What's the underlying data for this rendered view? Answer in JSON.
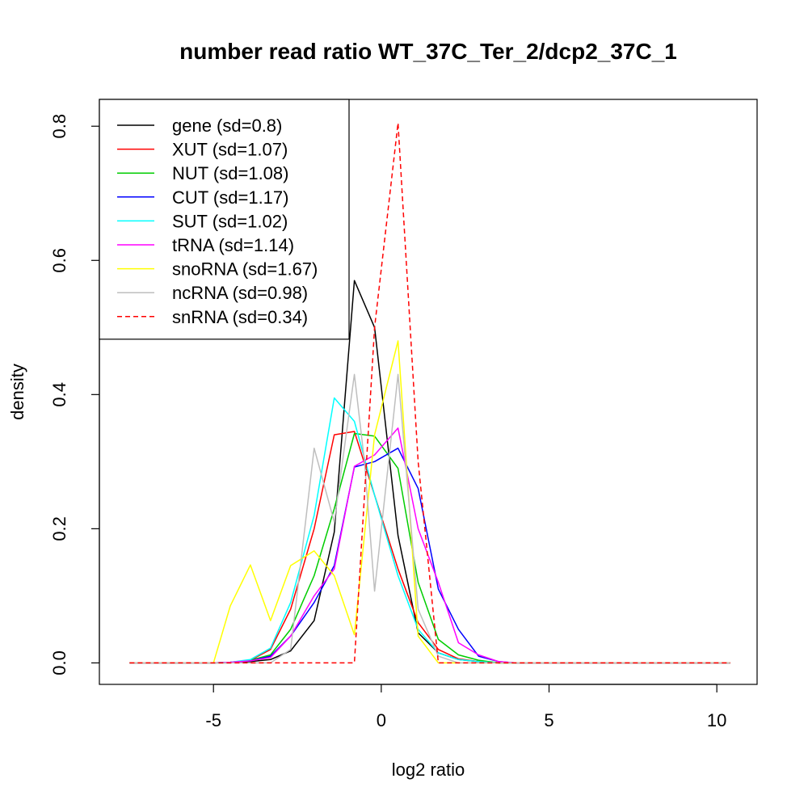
{
  "chart_data": {
    "type": "line",
    "title": "number read ratio WT_37C_Ter_2/dcp2_37C_1",
    "xlabel": "log2 ratio",
    "ylabel": "density",
    "xlim": [
      -8.4,
      11.2
    ],
    "ylim": [
      -0.032,
      0.84
    ],
    "xticks": [
      -5,
      0,
      5,
      10
    ],
    "yticks": [
      0.0,
      0.2,
      0.4,
      0.6,
      0.8
    ],
    "xtick_labels": [
      "-5",
      "0",
      "5",
      "10"
    ],
    "ytick_labels": [
      "0.0",
      "0.2",
      "0.4",
      "0.6",
      "0.8"
    ],
    "legend_position": "top-left",
    "series": [
      {
        "name": "gene (sd=0.8)",
        "color": "#000000",
        "dash": false,
        "x": [
          -7.5,
          -5.0,
          -4.5,
          -3.9,
          -3.3,
          -2.7,
          -2.0,
          -1.4,
          -0.8,
          -0.2,
          0.5,
          1.1,
          1.7,
          2.3,
          2.9,
          3.5,
          4.0,
          5.0,
          10.4
        ],
        "y": [
          0,
          0,
          0,
          0.002,
          0.005,
          0.018,
          0.063,
          0.195,
          0.57,
          0.5,
          0.19,
          0.045,
          0.015,
          0.005,
          0.002,
          0,
          0,
          0,
          0
        ]
      },
      {
        "name": "XUT (sd=1.07)",
        "color": "#ff0000",
        "dash": false,
        "x": [
          -7.5,
          -5.0,
          -4.5,
          -3.9,
          -3.3,
          -2.7,
          -2.0,
          -1.4,
          -0.8,
          -0.2,
          0.5,
          1.1,
          1.7,
          2.3,
          2.9,
          3.5,
          4.0,
          5.0,
          10.4
        ],
        "y": [
          0,
          0,
          0.001,
          0.004,
          0.02,
          0.08,
          0.2,
          0.34,
          0.345,
          0.25,
          0.14,
          0.06,
          0.02,
          0.006,
          0.002,
          0,
          0,
          0,
          0
        ]
      },
      {
        "name": "NUT (sd=1.08)",
        "color": "#00cd00",
        "dash": false,
        "x": [
          -7.5,
          -5.0,
          -4.5,
          -3.9,
          -3.3,
          -2.7,
          -2.0,
          -1.4,
          -0.8,
          -0.2,
          0.5,
          1.1,
          1.7,
          2.3,
          2.9,
          3.5,
          4.0,
          5.0,
          10.4
        ],
        "y": [
          0,
          0,
          0.001,
          0.004,
          0.012,
          0.05,
          0.13,
          0.23,
          0.342,
          0.338,
          0.29,
          0.12,
          0.035,
          0.012,
          0.004,
          0,
          0,
          0,
          0
        ]
      },
      {
        "name": "CUT (sd=1.17)",
        "color": "#0000ff",
        "dash": false,
        "x": [
          -7.5,
          -5.0,
          -4.5,
          -3.9,
          -3.3,
          -2.7,
          -2.0,
          -1.4,
          -0.8,
          -0.2,
          0.5,
          1.1,
          1.7,
          2.3,
          2.9,
          3.5,
          4.0,
          5.0,
          10.4
        ],
        "y": [
          0,
          0,
          0.001,
          0.003,
          0.01,
          0.04,
          0.09,
          0.145,
          0.292,
          0.3,
          0.32,
          0.26,
          0.11,
          0.05,
          0.01,
          0.002,
          0,
          0,
          0
        ]
      },
      {
        "name": "SUT (sd=1.02)",
        "color": "#00ffff",
        "dash": false,
        "x": [
          -7.5,
          -5.0,
          -4.5,
          -3.9,
          -3.3,
          -2.7,
          -2.0,
          -1.4,
          -0.8,
          -0.2,
          0.5,
          1.1,
          1.7,
          2.3,
          2.9,
          3.5,
          4.0,
          5.0,
          10.4
        ],
        "y": [
          0,
          0,
          0.001,
          0.005,
          0.022,
          0.09,
          0.22,
          0.395,
          0.36,
          0.25,
          0.13,
          0.05,
          0.015,
          0.005,
          0.002,
          0,
          0,
          0,
          0
        ]
      },
      {
        "name": "tRNA (sd=1.14)",
        "color": "#ff00ff",
        "dash": false,
        "x": [
          -7.5,
          -5.0,
          -4.5,
          -3.9,
          -3.3,
          -2.7,
          -2.0,
          -1.4,
          -0.8,
          -0.2,
          0.5,
          1.1,
          1.7,
          2.3,
          2.9,
          3.5,
          4.0,
          5.0,
          10.4
        ],
        "y": [
          0,
          0,
          0.001,
          0.003,
          0.008,
          0.04,
          0.1,
          0.14,
          0.293,
          0.31,
          0.35,
          0.2,
          0.12,
          0.03,
          0.012,
          0.002,
          0,
          0,
          0
        ]
      },
      {
        "name": "snoRNA (sd=1.67)",
        "color": "#ffff00",
        "dash": false,
        "x": [
          -7.5,
          -5.0,
          -4.5,
          -3.9,
          -3.3,
          -2.7,
          -2.0,
          -1.4,
          -0.8,
          -0.2,
          0.5,
          1.1,
          1.7,
          2.3,
          2.9,
          3.5,
          4.0,
          5.0,
          10.4
        ],
        "y": [
          0,
          0,
          0.085,
          0.146,
          0.063,
          0.145,
          0.167,
          0.13,
          0.042,
          0.34,
          0.48,
          0.04,
          0,
          0,
          0,
          0,
          0,
          0,
          0
        ]
      },
      {
        "name": "ncRNA (sd=0.98)",
        "color": "#bebebe",
        "dash": false,
        "x": [
          -7.5,
          -5.0,
          -4.5,
          -3.9,
          -3.3,
          -2.7,
          -2.0,
          -1.4,
          -0.8,
          -0.5,
          -0.2,
          0.5,
          1.1,
          1.7,
          2.3,
          2.9,
          3.5,
          4.0,
          5.0,
          10.4
        ],
        "y": [
          0,
          0,
          0,
          0,
          0,
          0.02,
          0.32,
          0.21,
          0.43,
          0.3,
          0.107,
          0.43,
          0.08,
          0.01,
          0,
          0,
          0,
          0,
          0,
          0
        ]
      },
      {
        "name": "snRNA (sd=0.34)",
        "color": "#ff0000",
        "dash": true,
        "x": [
          -7.5,
          -5.0,
          -4.5,
          -3.9,
          -3.3,
          -2.7,
          -2.0,
          -1.4,
          -0.8,
          -0.2,
          0.5,
          1.1,
          1.7,
          2.3,
          2.9,
          3.5,
          4.0,
          5.0,
          10.4
        ],
        "y": [
          0,
          0,
          0,
          0,
          0,
          0,
          0,
          0,
          0,
          0.5,
          0.805,
          0.3,
          0,
          0,
          0,
          0,
          0,
          0,
          0
        ]
      }
    ]
  }
}
